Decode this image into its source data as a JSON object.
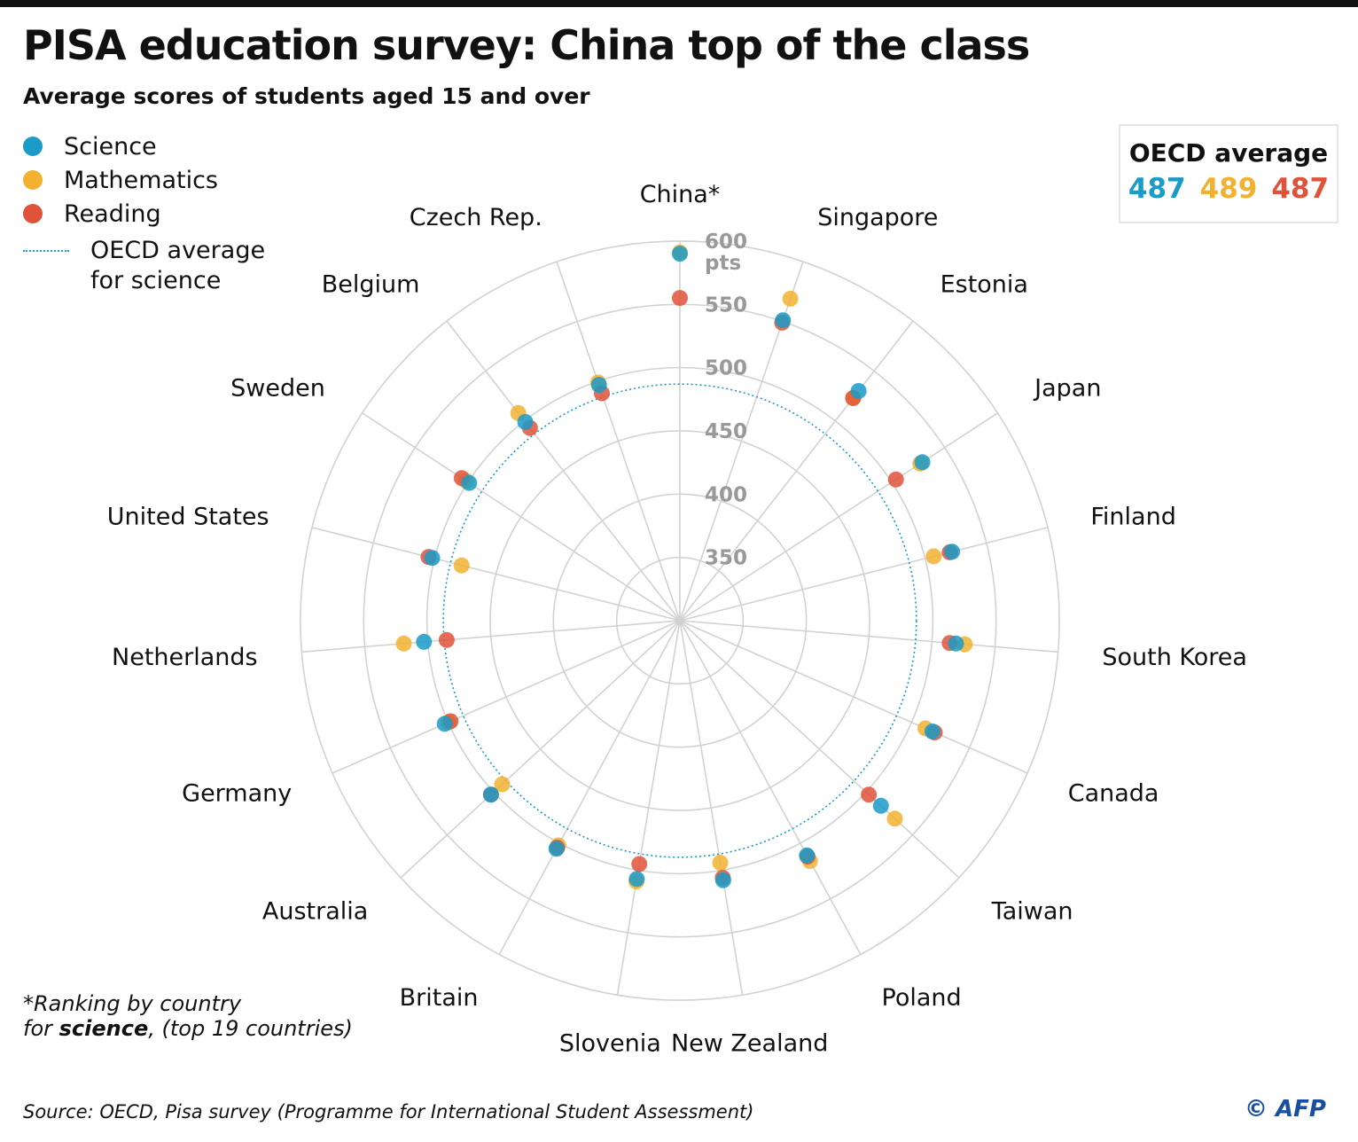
{
  "title": "PISA education survey: China top of the class",
  "subtitle": "Average scores of students aged 15 and over",
  "legend": {
    "science": "Science",
    "mathematics": "Mathematics",
    "reading": "Reading",
    "oecd_line_1": "OECD average",
    "oecd_line_2": "for science"
  },
  "oecd_box": {
    "title": "OECD average",
    "science": "487",
    "mathematics": "489",
    "reading": "487"
  },
  "note": {
    "line1": "*Ranking by country",
    "line2_prefix": "for ",
    "line2_bold": "science",
    "line2_suffix": ", (top 19 countries)"
  },
  "source": "Source: OECD, Pisa survey (Programme for International Student Assessment)",
  "credit": "© AFP",
  "colors": {
    "science": "#1a9bc8",
    "mathematics": "#f2b131",
    "reading": "#e0533a",
    "grid": "#d2d2d2"
  },
  "chart_data": {
    "type": "radar",
    "title": "PISA education survey: China top of the class",
    "subtitle": "Average scores of students aged 15 and over",
    "radial_ticks": [
      "350",
      "400",
      "450",
      "500",
      "550",
      "600"
    ],
    "radial_unit": "pts",
    "rlim": [
      300,
      600
    ],
    "oecd_science_average": 487,
    "categories": [
      "China*",
      "Singapore",
      "Estonia",
      "Japan",
      "Finland",
      "South Korea",
      "Canada",
      "Taiwan",
      "Poland",
      "New Zealand",
      "Slovenia",
      "Britain",
      "Australia",
      "Germany",
      "Netherlands",
      "United States",
      "Sweden",
      "Belgium",
      "Czech Rep."
    ],
    "series": [
      {
        "name": "Mathematics",
        "values": [
          591,
          569,
          523,
          527,
          507,
          526,
          512,
          531,
          516,
          494,
          509,
          502,
          491,
          500,
          519,
          478,
          502,
          508,
          499
        ]
      },
      {
        "name": "Reading",
        "values": [
          555,
          549,
          523,
          504,
          520,
          514,
          520,
          503,
          512,
          506,
          495,
          504,
          503,
          498,
          485,
          505,
          506,
          493,
          490
        ]
      },
      {
        "name": "Science",
        "values": [
          590,
          551,
          530,
          529,
          522,
          519,
          518,
          516,
          511,
          508,
          507,
          505,
          503,
          503,
          503,
          502,
          499,
          499,
          497
        ]
      }
    ]
  }
}
